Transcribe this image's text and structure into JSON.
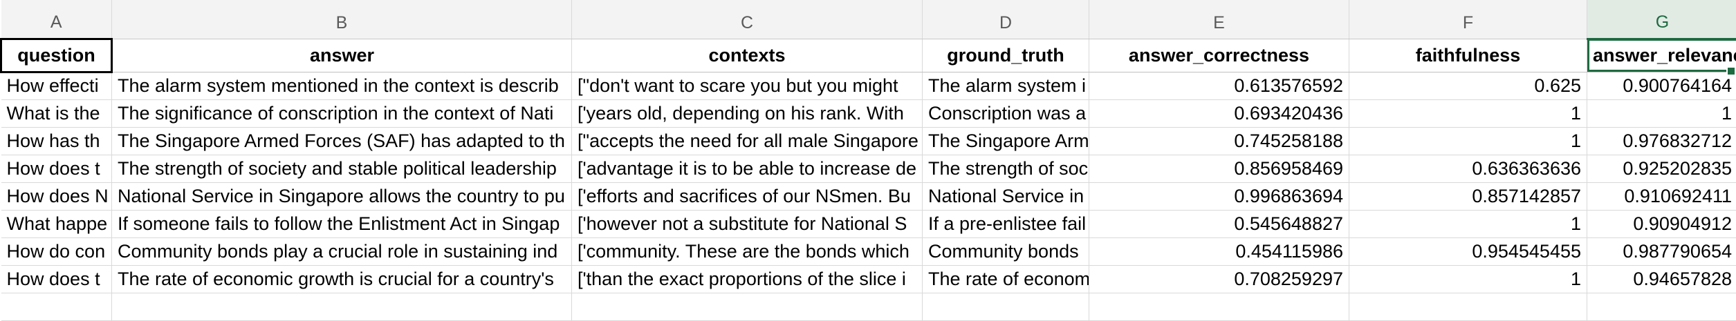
{
  "columns": [
    "A",
    "B",
    "C",
    "D",
    "E",
    "F",
    "G"
  ],
  "selected_column": "G",
  "header_row": [
    "question",
    "answer",
    "contexts",
    "ground_truth",
    "answer_correctness",
    "faithfulness",
    "answer_relevancy"
  ],
  "rows": [
    [
      "How effecti",
      "The alarm system mentioned in the context is describ",
      "[\"don't want to scare you but you might",
      "The alarm system i",
      "0.613576592",
      "0.625",
      "0.900764164"
    ],
    [
      "What is the",
      "The significance of conscription in the context of Nati",
      "['years old, depending on his rank. With",
      "Conscription was a",
      "0.693420436",
      "1",
      "1"
    ],
    [
      "How has th",
      "The Singapore Armed Forces (SAF) has adapted to th",
      "[\"accepts the need for all male Singapore",
      "The Singapore Arm",
      "0.745258188",
      "1",
      "0.976832712"
    ],
    [
      "How does t",
      "The strength of society and stable political leadership",
      "['advantage it is to be able to increase de",
      "The strength of soc",
      "0.856958469",
      "0.636363636",
      "0.925202835"
    ],
    [
      "How does N",
      "National Service in Singapore allows the country to pu",
      "['efforts and sacrifices of our NSmen. Bu",
      "National Service in",
      "0.996863694",
      "0.857142857",
      "0.910692411"
    ],
    [
      "What happe",
      "If someone fails to follow the Enlistment Act in Singap",
      "['however not a substitute for National S",
      "If a pre-enlistee fail",
      "0.545648827",
      "1",
      "0.90904912"
    ],
    [
      "How do con",
      "Community bonds play a crucial role in sustaining ind",
      "['community. These are the bonds which",
      "Community bonds",
      "0.454115986",
      "0.954545455",
      "0.987790654"
    ],
    [
      "How does t",
      "The rate of economic growth is crucial for a country's",
      "['than the exact proportions of the slice i",
      "The rate of econom",
      "0.708259297",
      "1",
      "0.94657828"
    ]
  ]
}
